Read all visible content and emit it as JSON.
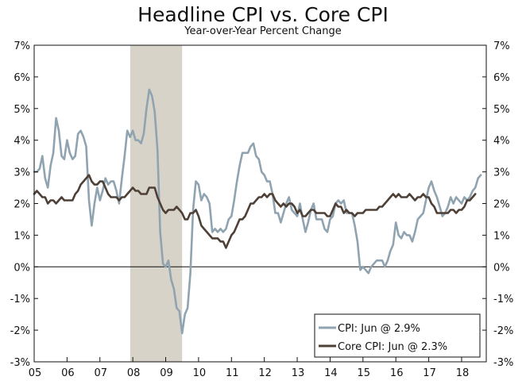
{
  "chart_data": {
    "type": "line",
    "title": "Headline CPI vs. Core CPI",
    "subtitle": "Year-over-Year Percent Change",
    "x_start": 2005.0,
    "x_step": 0.0833333,
    "xlim": [
      2005.0,
      2018.75
    ],
    "ylim": [
      -3,
      7
    ],
    "y_ticks": [
      -3,
      -2,
      -1,
      0,
      1,
      2,
      3,
      4,
      5,
      6,
      7
    ],
    "y_tick_labels": [
      "-3%",
      "-2%",
      "-1%",
      "0%",
      "1%",
      "2%",
      "3%",
      "4%",
      "5%",
      "6%",
      "7%"
    ],
    "x_tick_labels": [
      "05",
      "06",
      "07",
      "08",
      "09",
      "10",
      "11",
      "12",
      "13",
      "14",
      "15",
      "16",
      "17",
      "18"
    ],
    "recession": {
      "start": 2007.92,
      "end": 2009.5
    },
    "legend": "bottom-right",
    "series": [
      {
        "name": "CPI: Jun @ 2.9%",
        "color": "#8fa3b0",
        "values": [
          3.0,
          3.0,
          3.1,
          3.5,
          2.8,
          2.5,
          3.2,
          3.6,
          4.7,
          4.3,
          3.5,
          3.4,
          4.0,
          3.6,
          3.4,
          3.5,
          4.2,
          4.3,
          4.1,
          3.8,
          2.1,
          1.3,
          2.0,
          2.5,
          2.1,
          2.4,
          2.8,
          2.6,
          2.7,
          2.7,
          2.4,
          2.0,
          2.8,
          3.5,
          4.3,
          4.1,
          4.3,
          4.0,
          4.0,
          3.9,
          4.2,
          5.0,
          5.6,
          5.4,
          4.9,
          3.7,
          1.1,
          0.1,
          0.0,
          0.2,
          -0.4,
          -0.7,
          -1.3,
          -1.4,
          -2.1,
          -1.5,
          -1.3,
          -0.2,
          1.8,
          2.7,
          2.6,
          2.1,
          2.3,
          2.2,
          2.0,
          1.1,
          1.2,
          1.1,
          1.2,
          1.1,
          1.2,
          1.5,
          1.6,
          2.1,
          2.7,
          3.2,
          3.6,
          3.6,
          3.6,
          3.8,
          3.9,
          3.5,
          3.4,
          3.0,
          2.9,
          2.7,
          2.7,
          2.3,
          1.7,
          1.7,
          1.4,
          1.7,
          2.0,
          2.2,
          1.8,
          1.7,
          1.6,
          2.0,
          1.5,
          1.1,
          1.4,
          1.8,
          2.0,
          1.5,
          1.5,
          1.5,
          1.2,
          1.1,
          1.5,
          1.6,
          2.0,
          2.1,
          2.0,
          2.1,
          1.7,
          1.7,
          1.7,
          1.3,
          0.8,
          -0.1,
          0.0,
          -0.1,
          -0.2,
          0.0,
          0.1,
          0.2,
          0.2,
          0.2,
          0.0,
          0.2,
          0.5,
          0.7,
          1.4,
          1.0,
          0.9,
          1.1,
          1.0,
          1.0,
          0.8,
          1.1,
          1.5,
          1.6,
          1.7,
          2.1,
          2.5,
          2.7,
          2.4,
          2.2,
          1.9,
          1.6,
          1.7,
          1.9,
          2.2,
          2.0,
          2.2,
          2.1,
          2.0,
          2.2,
          2.1,
          2.2,
          2.4,
          2.5,
          2.8,
          2.9
        ]
      },
      {
        "name": "Core CPI: Jun @ 2.3%",
        "color": "#4e4036",
        "values": [
          2.3,
          2.4,
          2.3,
          2.2,
          2.2,
          2.0,
          2.1,
          2.1,
          2.0,
          2.1,
          2.2,
          2.1,
          2.1,
          2.1,
          2.1,
          2.3,
          2.4,
          2.6,
          2.7,
          2.8,
          2.9,
          2.7,
          2.6,
          2.6,
          2.7,
          2.7,
          2.5,
          2.3,
          2.2,
          2.2,
          2.2,
          2.1,
          2.2,
          2.2,
          2.3,
          2.4,
          2.5,
          2.4,
          2.4,
          2.3,
          2.3,
          2.3,
          2.5,
          2.5,
          2.5,
          2.2,
          2.0,
          1.8,
          1.7,
          1.8,
          1.8,
          1.8,
          1.9,
          1.8,
          1.7,
          1.5,
          1.5,
          1.7,
          1.7,
          1.8,
          1.6,
          1.3,
          1.2,
          1.1,
          1.0,
          0.9,
          0.9,
          0.9,
          0.8,
          0.8,
          0.6,
          0.8,
          1.0,
          1.1,
          1.3,
          1.5,
          1.5,
          1.6,
          1.8,
          2.0,
          2.0,
          2.1,
          2.2,
          2.2,
          2.3,
          2.2,
          2.3,
          2.3,
          2.1,
          2.0,
          1.9,
          2.0,
          1.9,
          2.0,
          2.0,
          1.9,
          1.7,
          1.8,
          1.6,
          1.6,
          1.7,
          1.8,
          1.8,
          1.7,
          1.7,
          1.7,
          1.7,
          1.6,
          1.6,
          1.8,
          2.0,
          1.9,
          1.9,
          1.7,
          1.8,
          1.7,
          1.7,
          1.6,
          1.7,
          1.7,
          1.7,
          1.8,
          1.8,
          1.8,
          1.8,
          1.8,
          1.9,
          1.9,
          2.0,
          2.1,
          2.2,
          2.3,
          2.2,
          2.3,
          2.2,
          2.2,
          2.2,
          2.3,
          2.2,
          2.1,
          2.2,
          2.2,
          2.3,
          2.2,
          2.2,
          2.0,
          1.9,
          1.7,
          1.7,
          1.7,
          1.7,
          1.7,
          1.8,
          1.8,
          1.7,
          1.8,
          1.8,
          1.9,
          2.1,
          2.1,
          2.2,
          2.3
        ]
      }
    ]
  }
}
